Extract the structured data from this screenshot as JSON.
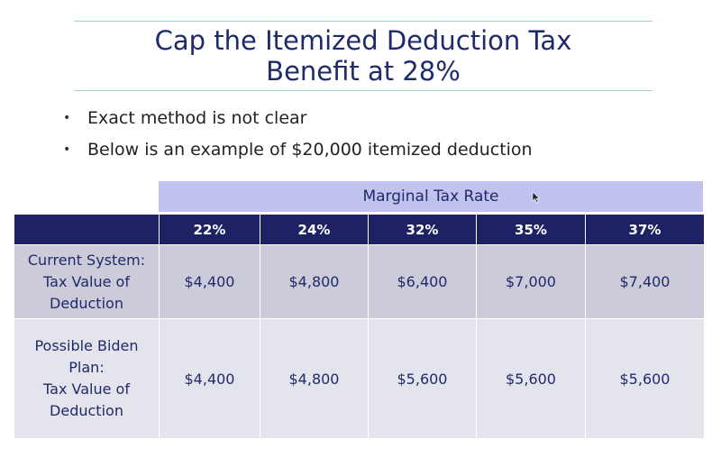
{
  "slide": {
    "title_line1": "Cap the Itemized Deduction Tax",
    "title_line2": "Benefit at 28%",
    "bullets": [
      "Exact method is not clear",
      "Below is an example of $20,000 itemized deduction"
    ],
    "bullet_glyph": "•"
  },
  "table": {
    "group_header": "Marginal Tax Rate",
    "columns": [
      "22%",
      "24%",
      "32%",
      "35%",
      "37%"
    ],
    "rows": [
      {
        "label_lines": [
          "Current System:",
          "Tax Value of",
          "Deduction"
        ],
        "values": [
          "$4,400",
          "$4,800",
          "$6,400",
          "$7,000",
          "$7,400"
        ]
      },
      {
        "label_lines": [
          "Possible Biden",
          "Plan:",
          "Tax Value of",
          "Deduction"
        ],
        "values": [
          "$4,400",
          "$4,800",
          "$5,600",
          "$5,600",
          "$5,600"
        ]
      }
    ]
  },
  "colors": {
    "title": "#1f2a6b",
    "header_band": "#c1c3ee",
    "column_header": "#1e2264",
    "row_current": "#cbcbd9",
    "row_biden": "#e4e4ec",
    "rule": "#9fd6cf"
  },
  "icons": {
    "cursor": "mouse-pointer-icon"
  }
}
